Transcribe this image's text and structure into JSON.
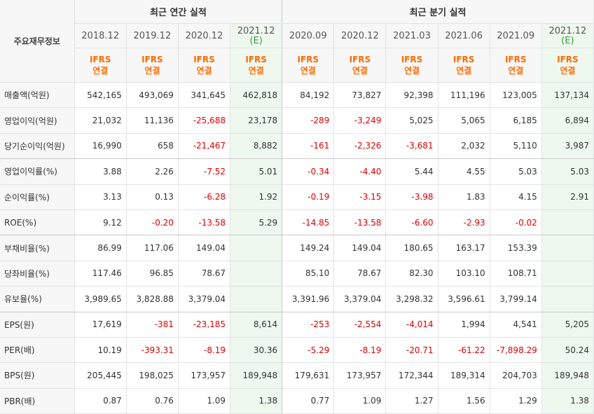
{
  "header": {
    "corner_label": "주요재무정보",
    "annual_group": "최근 연간 실적",
    "quarter_group": "최근 분기 실적",
    "annual_periods": [
      {
        "main": "2018.12",
        "sub": ""
      },
      {
        "main": "2019.12",
        "sub": ""
      },
      {
        "main": "2020.12",
        "sub": ""
      },
      {
        "main": "2021.12",
        "sub": "(E)"
      }
    ],
    "quarter_periods": [
      {
        "main": "2020.09",
        "sub": ""
      },
      {
        "main": "2020.12",
        "sub": ""
      },
      {
        "main": "2021.03",
        "sub": ""
      },
      {
        "main": "2021.06",
        "sub": ""
      },
      {
        "main": "2021.09",
        "sub": ""
      },
      {
        "main": "2021.12",
        "sub": "(E)"
      }
    ],
    "ifrs_line1": "IFRS",
    "ifrs_line2": "연결"
  },
  "rows": [
    {
      "label": "매출액(억원)",
      "values": [
        "542,165",
        "493,069",
        "341,645",
        "462,818",
        "84,192",
        "73,827",
        "92,398",
        "111,196",
        "123,005",
        "137,134"
      ]
    },
    {
      "label": "영업이익(억원)",
      "values": [
        "21,032",
        "11,136",
        "-25,688",
        "23,178",
        "-289",
        "-3,249",
        "5,025",
        "5,065",
        "6,185",
        "6,894"
      ]
    },
    {
      "label": "당기순이익(억원)",
      "values": [
        "16,990",
        "658",
        "-21,467",
        "8,882",
        "-161",
        "-2,326",
        "-3,681",
        "2,032",
        "5,110",
        "3,987"
      ]
    },
    {
      "label": "영업이익률(%)",
      "values": [
        "3.88",
        "2.26",
        "-7.52",
        "5.01",
        "-0.34",
        "-4.40",
        "5.44",
        "4.55",
        "5.03",
        "5.03"
      ]
    },
    {
      "label": "순이익률(%)",
      "values": [
        "3.13",
        "0.13",
        "-6.28",
        "1.92",
        "-0.19",
        "-3.15",
        "-3.98",
        "1.83",
        "4.15",
        "2.91"
      ]
    },
    {
      "label": "ROE(%)",
      "values": [
        "9.12",
        "-0.20",
        "-13.58",
        "5.29",
        "-14.85",
        "-13.58",
        "-6.60",
        "-2.93",
        "-0.02",
        ""
      ]
    },
    {
      "label": "부채비율(%)",
      "values": [
        "86.99",
        "117.06",
        "149.04",
        "",
        "149.24",
        "149.04",
        "180.65",
        "163.17",
        "153.39",
        ""
      ]
    },
    {
      "label": "당좌비율(%)",
      "values": [
        "117.46",
        "96.85",
        "78.67",
        "",
        "85.10",
        "78.67",
        "82.30",
        "103.10",
        "108.71",
        ""
      ]
    },
    {
      "label": "유보율(%)",
      "values": [
        "3,989.65",
        "3,828.88",
        "3,379.04",
        "",
        "3,391.96",
        "3,379.04",
        "3,298.32",
        "3,596.61",
        "3,799.14",
        ""
      ]
    },
    {
      "label": "EPS(원)",
      "values": [
        "17,619",
        "-381",
        "-23,185",
        "8,614",
        "-253",
        "-2,554",
        "-4,014",
        "1,994",
        "4,541",
        "5,205"
      ]
    },
    {
      "label": "PER(배)",
      "values": [
        "10.19",
        "-393.31",
        "-8.19",
        "30.36",
        "-5.29",
        "-8.19",
        "-20.71",
        "-61.22",
        "-7,898.29",
        "50.24"
      ]
    },
    {
      "label": "BPS(원)",
      "values": [
        "205,445",
        "198,025",
        "173,957",
        "189,948",
        "179,631",
        "173,957",
        "172,344",
        "189,314",
        "204,703",
        "189,948"
      ]
    },
    {
      "label": "PBR(배)",
      "values": [
        "0.87",
        "0.76",
        "1.09",
        "1.38",
        "0.77",
        "1.09",
        "1.27",
        "1.56",
        "1.29",
        "1.38"
      ]
    }
  ]
}
